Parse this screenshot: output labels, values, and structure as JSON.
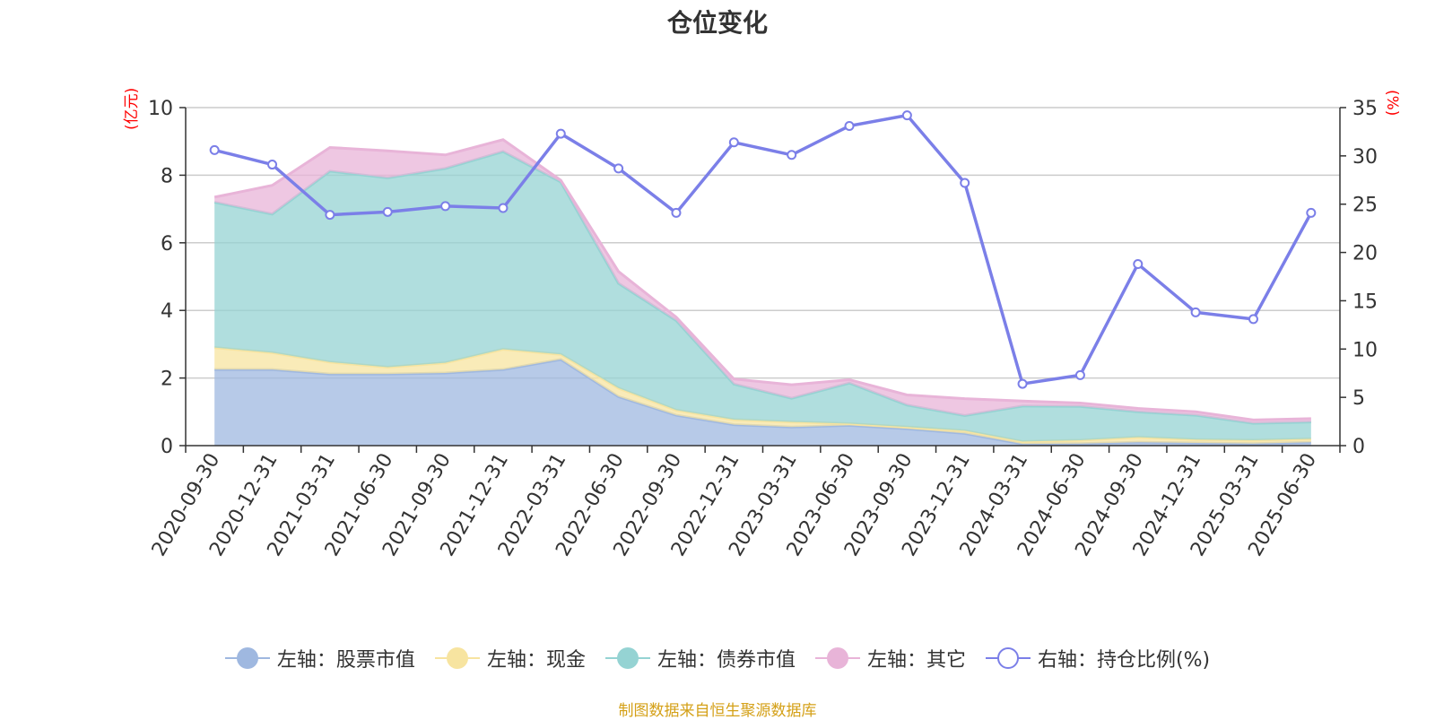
{
  "chart_data": {
    "type": "area",
    "title": "仓位变化",
    "left_unit": "(亿元)",
    "right_unit": "(%)",
    "categories": [
      "2020-09-30",
      "2020-12-31",
      "2021-03-31",
      "2021-06-30",
      "2021-09-30",
      "2021-12-31",
      "2022-03-31",
      "2022-06-30",
      "2022-09-30",
      "2022-12-31",
      "2023-03-31",
      "2023-06-30",
      "2023-09-30",
      "2023-12-31",
      "2024-03-31",
      "2024-06-30",
      "2024-09-30",
      "2024-12-31",
      "2025-03-31",
      "2025-06-30"
    ],
    "left_axis": {
      "ylim": [
        0,
        10
      ],
      "ticks": [
        "0",
        "2",
        "4",
        "6",
        "8",
        "10"
      ]
    },
    "right_axis": {
      "ylim": [
        0,
        35
      ],
      "ticks": [
        "0",
        "5",
        "10",
        "15",
        "20",
        "25",
        "30",
        "35"
      ]
    },
    "grid": true,
    "legend_position": "bottom",
    "series": [
      {
        "name": "左轴：股票市值",
        "axis": "left",
        "stacked": true,
        "color": "#9fb8e0",
        "values": [
          2.25,
          2.25,
          2.12,
          2.12,
          2.15,
          2.25,
          2.55,
          1.45,
          0.9,
          0.62,
          0.55,
          0.6,
          0.5,
          0.36,
          0.05,
          0.06,
          0.1,
          0.08,
          0.06,
          0.1
        ]
      },
      {
        "name": "左轴：现金",
        "axis": "left",
        "stacked": true,
        "color": "#f7e4a0",
        "values": [
          0.65,
          0.5,
          0.35,
          0.2,
          0.3,
          0.6,
          0.15,
          0.25,
          0.15,
          0.15,
          0.15,
          0.05,
          0.05,
          0.08,
          0.07,
          0.1,
          0.15,
          0.1,
          0.1,
          0.1
        ]
      },
      {
        "name": "左轴：债券市值",
        "axis": "left",
        "stacked": true,
        "color": "#95d3d3",
        "values": [
          4.3,
          4.1,
          5.65,
          5.6,
          5.75,
          5.85,
          5.1,
          3.1,
          2.65,
          1.05,
          0.7,
          1.2,
          0.65,
          0.45,
          1.05,
          1.0,
          0.75,
          0.72,
          0.5,
          0.5
        ]
      },
      {
        "name": "左轴：其它",
        "axis": "left",
        "stacked": true,
        "color": "#e8b4d8",
        "values": [
          0.15,
          0.85,
          0.7,
          0.8,
          0.4,
          0.35,
          0.05,
          0.35,
          0.1,
          0.15,
          0.4,
          0.1,
          0.3,
          0.5,
          0.15,
          0.1,
          0.1,
          0.1,
          0.1,
          0.1
        ]
      },
      {
        "name": "右轴：持仓比例(%)",
        "axis": "right",
        "type": "line",
        "color": "#7b7fe8",
        "values": [
          30.6,
          29.1,
          23.9,
          24.2,
          24.8,
          24.6,
          32.3,
          28.7,
          24.1,
          31.4,
          30.1,
          33.1,
          34.2,
          27.2,
          6.4,
          7.3,
          18.8,
          13.8,
          13.1,
          24.1
        ]
      }
    ]
  },
  "footer_text": "制图数据来自恒生聚源数据库"
}
